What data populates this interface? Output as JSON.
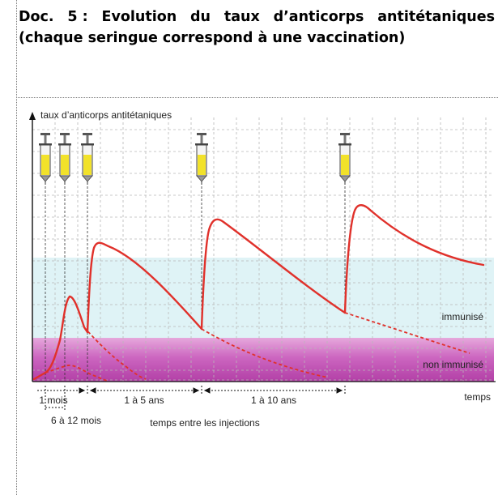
{
  "document": {
    "title_line1_words": [
      "Doc.",
      "5 :",
      "Evolution",
      "du",
      "taux",
      "d’anticorps",
      "antitétaniques"
    ],
    "title_line2": "(chaque seringue correspond à une vaccination)"
  },
  "chart_data": {
    "type": "line",
    "title": "",
    "ylabel": "taux d’anticorps antitétaniques",
    "xlabel": "temps",
    "grid": true,
    "zones": [
      {
        "label": "immunisé",
        "color": "#dff3f6"
      },
      {
        "label": "non immunisé",
        "color": "#cc5fbf"
      }
    ],
    "injections": 5,
    "intervals": [
      {
        "label": "1 mois"
      },
      {
        "label": "6 à 12 mois"
      },
      {
        "label": "1 à 5 ans"
      },
      {
        "label": "1 à 10 ans"
      }
    ],
    "interval_caption": "temps entre les injections",
    "series": [
      {
        "style": "solid",
        "color": "#e0312b"
      },
      {
        "style": "dashed",
        "color": "#e0312b"
      }
    ]
  },
  "colors": {
    "curve": "#e0312b",
    "syringe_liquid": "#f2e22a",
    "grid": "#b8b8b8"
  }
}
